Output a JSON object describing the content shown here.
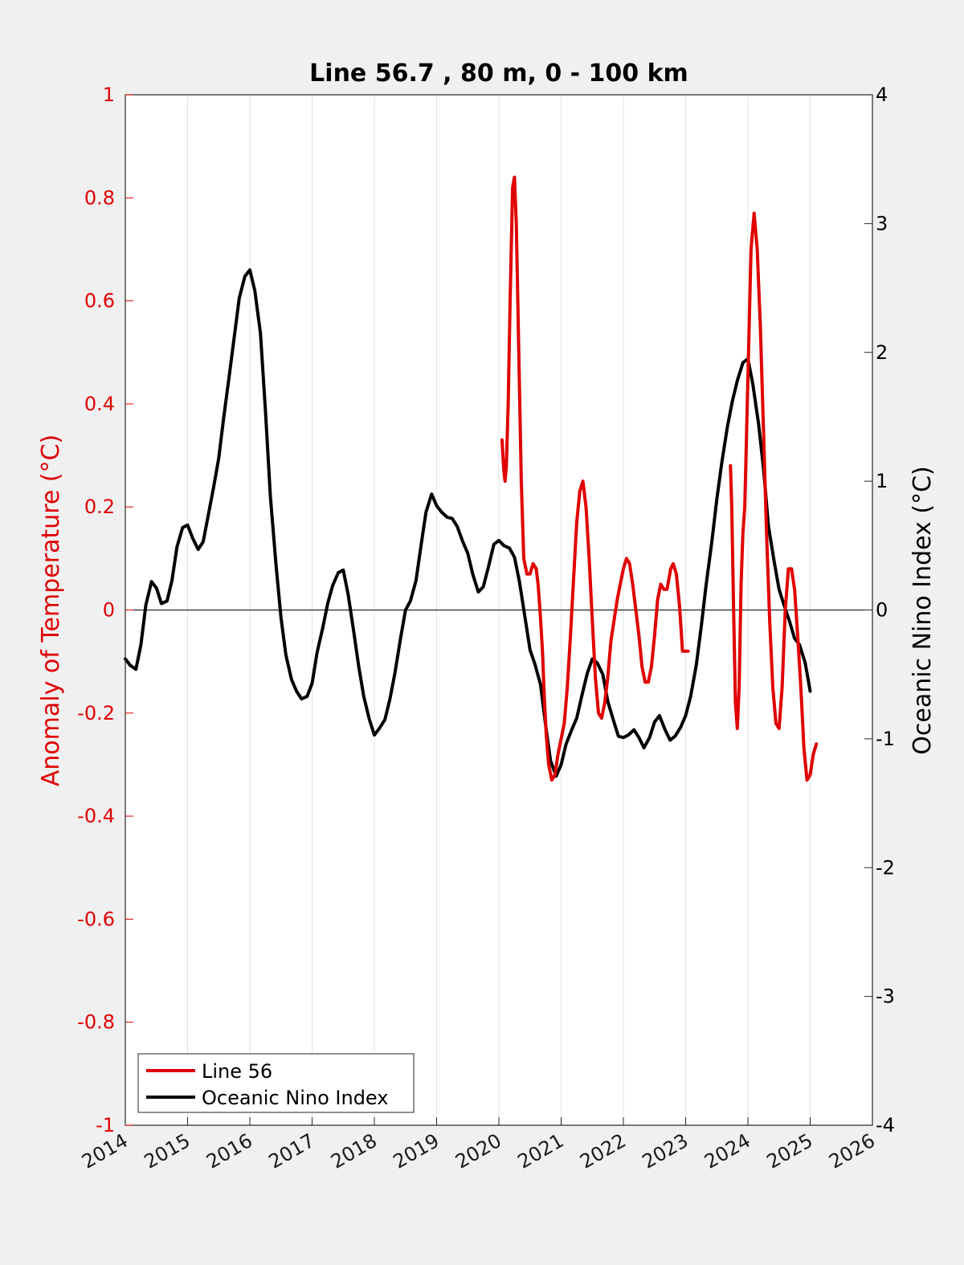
{
  "chart_data": {
    "type": "line",
    "title": "Line 56.7 , 80 m, 0 - 100 km",
    "xlabel": "",
    "ylabel_left": "Anomaly of Temperature (°C)",
    "ylabel_right": "Oceanic Nino Index (°C)",
    "xlim": [
      2014,
      2026
    ],
    "ylim_left": [
      -1,
      1
    ],
    "ylim_right": [
      -4,
      4
    ],
    "x_ticks": [
      "2014",
      "2015",
      "2016",
      "2017",
      "2018",
      "2019",
      "2020",
      "2021",
      "2022",
      "2023",
      "2024",
      "2025",
      "2026"
    ],
    "y_ticks_left": [
      "-1",
      "-0.8",
      "-0.6",
      "-0.4",
      "-0.2",
      "0",
      "0.2",
      "0.4",
      "0.6",
      "0.8",
      "1"
    ],
    "y_ticks_right": [
      "-4",
      "-3",
      "-2",
      "-1",
      "0",
      "1",
      "2",
      "3",
      "4"
    ],
    "grid": "vertical",
    "legend_position": "bottom-left",
    "colors": {
      "line56": "#e00000",
      "oni": "#000000",
      "left_axis": "#e00000",
      "background": "#f0f0f0",
      "plot_bg": "#ffffff"
    },
    "series": [
      {
        "name": "Line 56",
        "axis": "left",
        "segments": [
          {
            "x": [
              2020.05,
              2020.08,
              2020.1,
              2020.12,
              2020.15,
              2020.18,
              2020.22,
              2020.25,
              2020.28,
              2020.32,
              2020.36,
              2020.4,
              2020.45,
              2020.5,
              2020.55,
              2020.6,
              2020.63,
              2020.66,
              2020.7,
              2020.73,
              2020.76,
              2020.8,
              2020.85,
              2020.9,
              2020.95,
              2021.0,
              2021.05,
              2021.1,
              2021.15,
              2021.2,
              2021.25,
              2021.3,
              2021.35,
              2021.4,
              2021.45,
              2021.5,
              2021.55,
              2021.6,
              2021.65,
              2021.7,
              2021.75,
              2021.8,
              2021.85,
              2021.9,
              2021.95,
              2022.0,
              2022.05,
              2022.1,
              2022.15,
              2022.2,
              2022.25,
              2022.3,
              2022.35,
              2022.4,
              2022.45,
              2022.5,
              2022.55,
              2022.6,
              2022.65,
              2022.7,
              2022.73,
              2022.76,
              2022.8,
              2022.85,
              2022.9,
              2022.95,
              2023.0,
              2023.04
            ],
            "y": [
              0.33,
              0.27,
              0.25,
              0.28,
              0.4,
              0.6,
              0.82,
              0.84,
              0.75,
              0.5,
              0.25,
              0.1,
              0.07,
              0.07,
              0.09,
              0.08,
              0.05,
              0.0,
              -0.08,
              -0.17,
              -0.24,
              -0.3,
              -0.33,
              -0.32,
              -0.28,
              -0.25,
              -0.22,
              -0.15,
              -0.05,
              0.06,
              0.17,
              0.23,
              0.25,
              0.2,
              0.1,
              -0.02,
              -0.13,
              -0.2,
              -0.21,
              -0.18,
              -0.13,
              -0.06,
              -0.02,
              0.02,
              0.05,
              0.08,
              0.1,
              0.09,
              0.05,
              0.0,
              -0.05,
              -0.11,
              -0.14,
              -0.14,
              -0.11,
              -0.05,
              0.02,
              0.05,
              0.04,
              0.04,
              0.06,
              0.08,
              0.09,
              0.07,
              0.01,
              -0.08,
              -0.08,
              -0.08
            ]
          },
          {
            "x": [
              2023.72,
              2023.74,
              2023.77,
              2023.8,
              2023.83,
              2023.86,
              2023.89,
              2023.92,
              2023.95,
              2024.0,
              2024.05,
              2024.1,
              2024.15,
              2024.2,
              2024.25,
              2024.3,
              2024.35,
              2024.4,
              2024.45,
              2024.5,
              2024.55,
              2024.6,
              2024.65,
              2024.7,
              2024.75,
              2024.8,
              2024.85,
              2024.9,
              2024.95,
              2025.0,
              2025.05,
              2025.1
            ],
            "y": [
              0.28,
              0.2,
              0.0,
              -0.18,
              -0.23,
              -0.15,
              0.05,
              0.15,
              0.2,
              0.45,
              0.7,
              0.77,
              0.7,
              0.55,
              0.35,
              0.15,
              -0.02,
              -0.15,
              -0.22,
              -0.23,
              -0.15,
              0.0,
              0.08,
              0.08,
              0.04,
              -0.05,
              -0.15,
              -0.27,
              -0.33,
              -0.32,
              -0.28,
              -0.26
            ]
          }
        ]
      },
      {
        "name": "Oceanic Nino Index",
        "axis": "right",
        "segments": [
          {
            "x": [
              2014.0,
              2014.08,
              2014.17,
              2014.25,
              2014.33,
              2014.42,
              2014.5,
              2014.58,
              2014.67,
              2014.75,
              2014.83,
              2014.92,
              2015.0,
              2015.08,
              2015.17,
              2015.25,
              2015.33,
              2015.42,
              2015.5,
              2015.58,
              2015.67,
              2015.75,
              2015.83,
              2015.92,
              2016.0,
              2016.08,
              2016.17,
              2016.25,
              2016.33,
              2016.42,
              2016.5,
              2016.58,
              2016.67,
              2016.75,
              2016.83,
              2016.92,
              2017.0,
              2017.08,
              2017.17,
              2017.25,
              2017.33,
              2017.42,
              2017.5,
              2017.58,
              2017.67,
              2017.75,
              2017.83,
              2017.92,
              2018.0,
              2018.08,
              2018.17,
              2018.25,
              2018.33,
              2018.42,
              2018.5,
              2018.58,
              2018.67,
              2018.75,
              2018.83,
              2018.92,
              2019.0,
              2019.08,
              2019.17,
              2019.25,
              2019.33,
              2019.42,
              2019.5,
              2019.58,
              2019.67,
              2019.75,
              2019.83,
              2019.92,
              2020.0,
              2020.08,
              2020.17,
              2020.25,
              2020.33,
              2020.42,
              2020.5,
              2020.58,
              2020.67,
              2020.75,
              2020.83,
              2020.92,
              2021.0,
              2021.08,
              2021.17,
              2021.25,
              2021.33,
              2021.42,
              2021.5,
              2021.58,
              2021.67,
              2021.75,
              2021.83,
              2021.92,
              2022.0,
              2022.08,
              2022.17,
              2022.25,
              2022.33,
              2022.42,
              2022.5,
              2022.58,
              2022.67,
              2022.75,
              2022.83,
              2022.92,
              2023.0,
              2023.08,
              2023.17,
              2023.25,
              2023.33,
              2023.42,
              2023.5,
              2023.58,
              2023.67,
              2023.75,
              2023.83,
              2023.92,
              2024.0,
              2024.08,
              2024.17,
              2024.25,
              2024.33,
              2024.42,
              2024.5,
              2024.58,
              2024.67,
              2024.75,
              2024.83,
              2024.92,
              2025.0
            ],
            "y": [
              -0.38,
              -0.43,
              -0.46,
              -0.27,
              0.04,
              0.22,
              0.17,
              0.05,
              0.07,
              0.23,
              0.49,
              0.64,
              0.66,
              0.56,
              0.47,
              0.53,
              0.73,
              0.96,
              1.18,
              1.49,
              1.82,
              2.12,
              2.42,
              2.59,
              2.64,
              2.48,
              2.15,
              1.55,
              0.88,
              0.35,
              -0.06,
              -0.35,
              -0.54,
              -0.63,
              -0.69,
              -0.67,
              -0.57,
              -0.33,
              -0.14,
              0.05,
              0.19,
              0.29,
              0.31,
              0.12,
              -0.17,
              -0.44,
              -0.67,
              -0.85,
              -0.97,
              -0.92,
              -0.85,
              -0.69,
              -0.49,
              -0.22,
              0.0,
              0.07,
              0.23,
              0.5,
              0.76,
              0.9,
              0.81,
              0.76,
              0.72,
              0.71,
              0.65,
              0.53,
              0.44,
              0.28,
              0.14,
              0.18,
              0.33,
              0.51,
              0.54,
              0.5,
              0.48,
              0.41,
              0.22,
              -0.06,
              -0.31,
              -0.42,
              -0.58,
              -0.89,
              -1.17,
              -1.29,
              -1.2,
              -1.04,
              -0.93,
              -0.84,
              -0.67,
              -0.49,
              -0.38,
              -0.41,
              -0.5,
              -0.71,
              -0.84,
              -0.98,
              -0.99,
              -0.97,
              -0.93,
              -0.99,
              -1.07,
              -0.99,
              -0.87,
              -0.82,
              -0.93,
              -1.01,
              -0.98,
              -0.91,
              -0.82,
              -0.67,
              -0.43,
              -0.13,
              0.2,
              0.53,
              0.86,
              1.14,
              1.42,
              1.62,
              1.78,
              1.92,
              1.95,
              1.75,
              1.45,
              1.1,
              0.65,
              0.38,
              0.16,
              0.04,
              -0.09,
              -0.22,
              -0.27,
              -0.41,
              -0.63
            ]
          }
        ]
      }
    ]
  }
}
